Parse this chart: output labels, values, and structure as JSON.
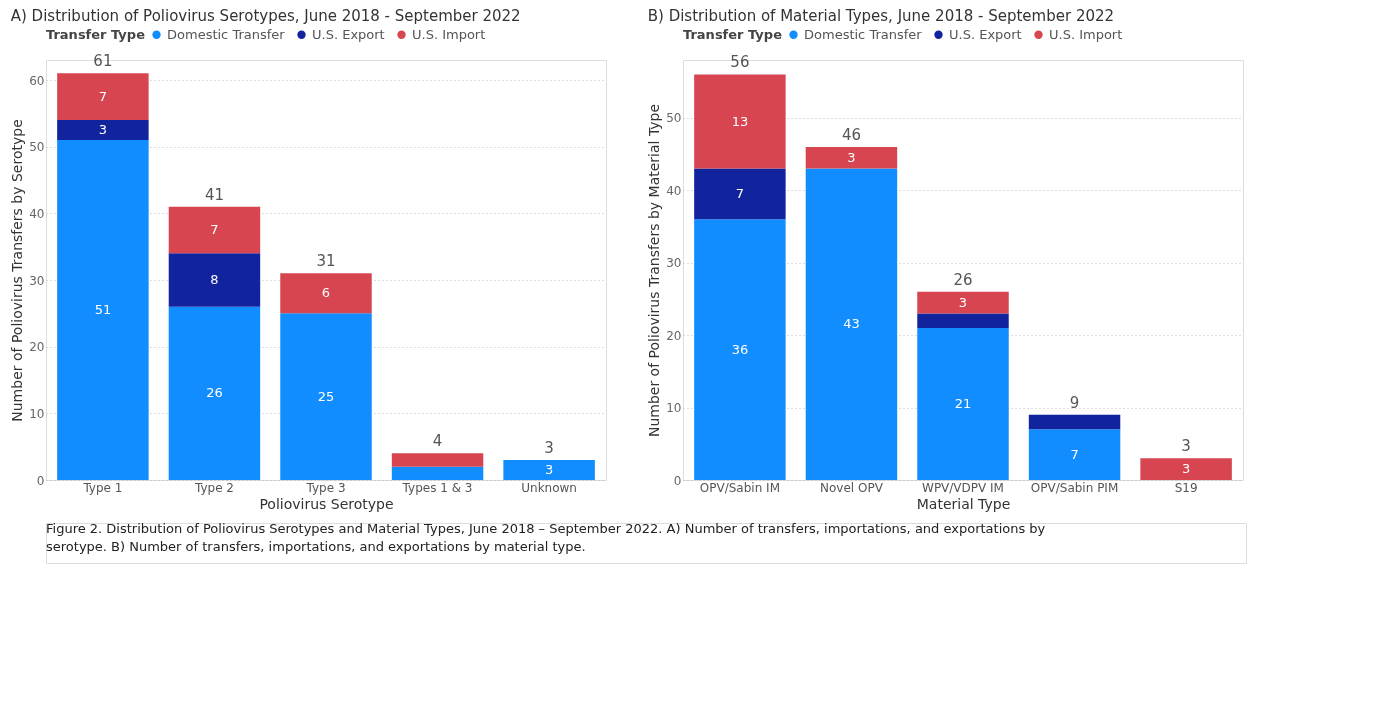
{
  "chart_data": [
    {
      "type": "bar",
      "title": "A) Distribution of Poliovirus Serotypes, June 2018 - September 2022",
      "xlabel": "Poliovirus Serotype",
      "ylabel": "Number of Poliovirus Transfers by Serotype",
      "legend_title": "Transfer Type",
      "legend": "top left",
      "stacked": true,
      "grid": "y",
      "categories": [
        "Type 1",
        "Type 2",
        "Type 3",
        "Types 1 & 3",
        "Unknown"
      ],
      "series": [
        {
          "name": "Domestic Transfer",
          "color": "#118dff",
          "values": [
            51,
            26,
            25,
            2,
            3
          ],
          "value_labels": [
            "51",
            "26",
            "25",
            null,
            "3"
          ]
        },
        {
          "name": "U.S. Export",
          "color": "#12239e",
          "values": [
            3,
            8,
            null,
            null,
            null
          ],
          "value_labels": [
            "3",
            "8",
            null,
            null,
            null
          ]
        },
        {
          "name": "U.S. Import",
          "color": "#d64550",
          "values": [
            7,
            7,
            6,
            2,
            null
          ],
          "value_labels": [
            "7",
            "7",
            "6",
            null,
            null
          ]
        }
      ],
      "totals": [
        "61",
        "41",
        "31",
        "4",
        "3"
      ],
      "ylim": [
        0,
        63
      ],
      "yticks": [
        0,
        10,
        20,
        30,
        40,
        50,
        60
      ],
      "annotations": [
        "Figure 2. Distribution of Poliovirus Serotypes and Material Types, June 2018 – September 2022. A) Number of transfers, importations, and exportations by serotype. B) Number of transfers, importations, and exportations by material type."
      ]
    },
    {
      "type": "bar",
      "title": "B) Distribution of Material Types, June 2018 - September 2022",
      "xlabel": "Material Type",
      "ylabel": "Number of Poliovirus Transfers by Material Type",
      "legend_title": "Transfer Type",
      "legend": "top left",
      "stacked": true,
      "grid": "y",
      "categories": [
        "OPV/Sabin IM",
        "Novel OPV",
        "WPV/VDPV IM",
        "OPV/Sabin PIM",
        "S19"
      ],
      "series": [
        {
          "name": "Domestic Transfer",
          "color": "#118dff",
          "values": [
            36,
            43,
            21,
            7,
            null
          ],
          "value_labels": [
            "36",
            "43",
            "21",
            "7",
            null
          ]
        },
        {
          "name": "U.S. Export",
          "color": "#12239e",
          "values": [
            7,
            null,
            2,
            2,
            null
          ],
          "value_labels": [
            "7",
            null,
            null,
            null,
            null
          ]
        },
        {
          "name": "U.S. Import",
          "color": "#d64550",
          "values": [
            13,
            3,
            3,
            null,
            3
          ],
          "value_labels": [
            "13",
            "3",
            "3",
            null,
            "3"
          ]
        }
      ],
      "totals": [
        "56",
        "46",
        "26",
        "9",
        "3"
      ],
      "ylim": [
        0,
        58
      ],
      "yticks": [
        0,
        10,
        20,
        30,
        40,
        50
      ]
    }
  ]
}
